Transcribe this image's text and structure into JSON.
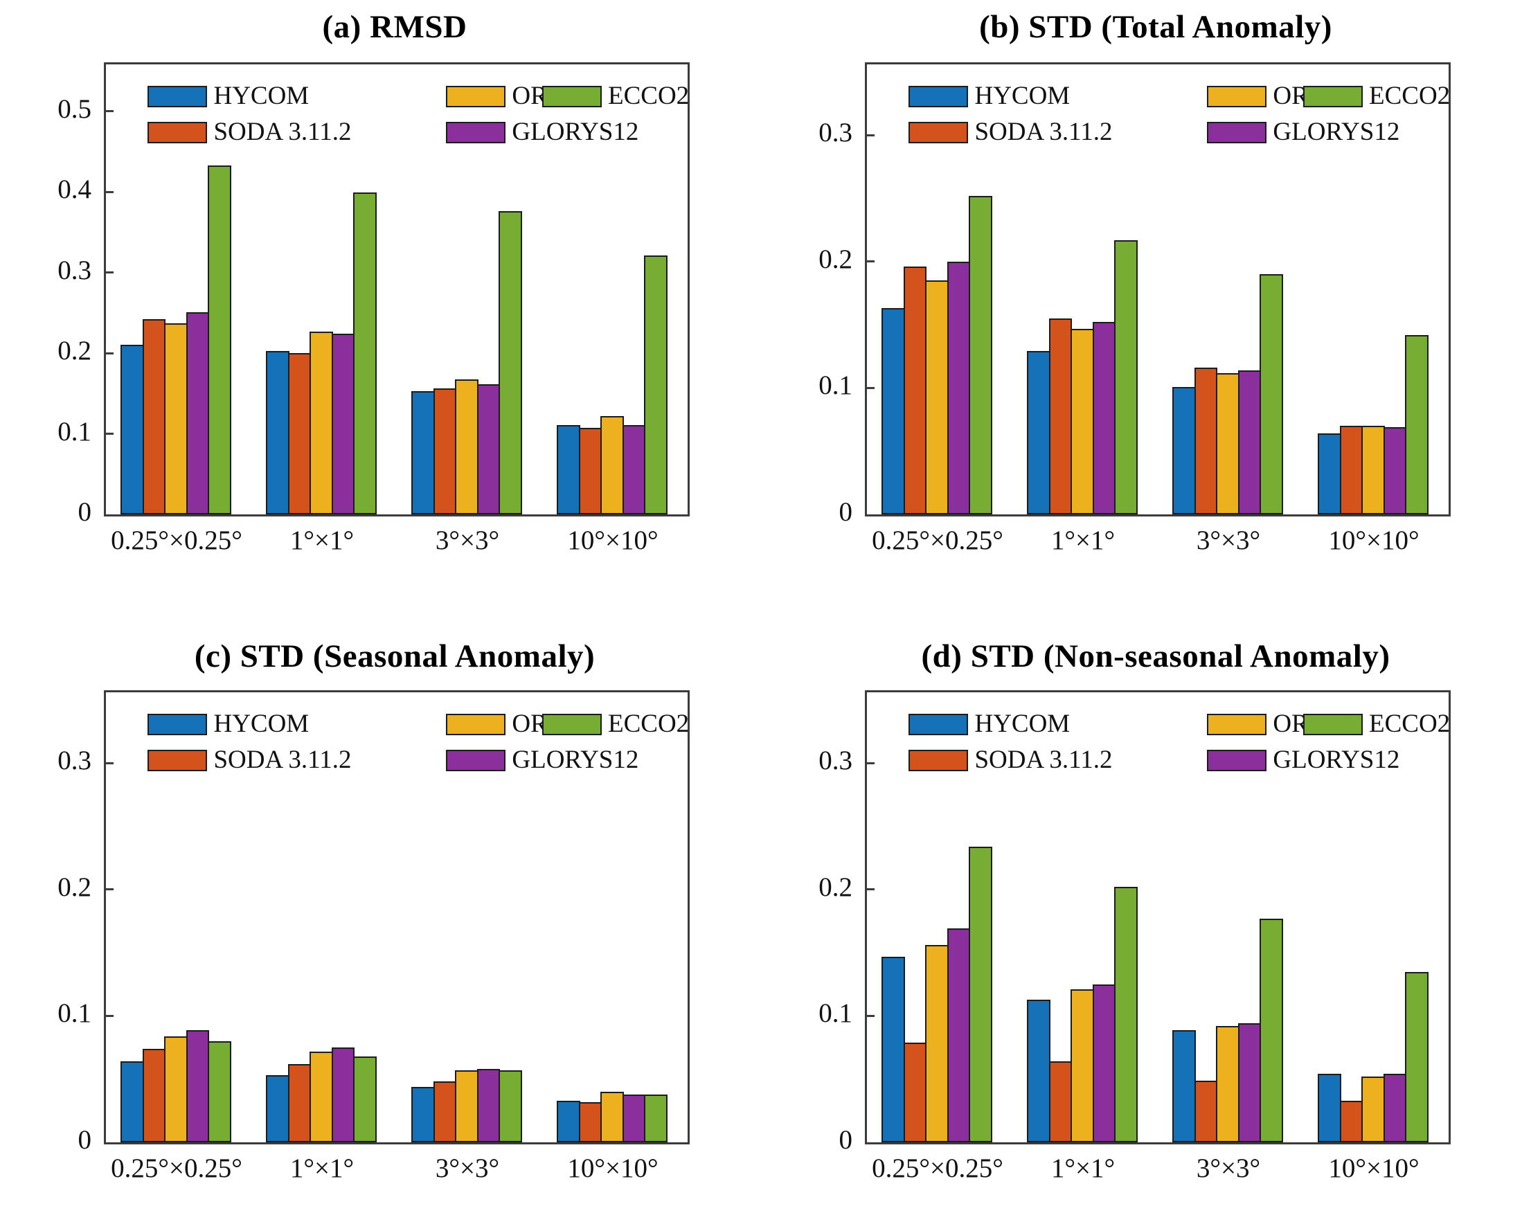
{
  "figure": {
    "background": "#ffffff",
    "axis_color": "#3c3c3c",
    "bar_outline_color": "#1c1c1c",
    "series_colors": {
      "HYCOM": "#1572b8",
      "SODA 3.11.2": "#d4531c",
      "ORAS5": "#edb11f",
      "GLORYS12": "#8a2f9c",
      "ECCO2": "#76ad32"
    }
  },
  "chart_data": [
    {
      "type": "bar",
      "title": "(a) RMSD",
      "categories": [
        "0.25°×0.25°",
        "1°×1°",
        "3°×3°",
        "10°×10°"
      ],
      "series": [
        {
          "name": "HYCOM",
          "color": "#1572b8",
          "values": [
            0.21,
            0.203,
            0.153,
            0.111
          ]
        },
        {
          "name": "SODA 3.11.2",
          "color": "#d4531c",
          "values": [
            0.242,
            0.2,
            0.156,
            0.107
          ]
        },
        {
          "name": "ORAS5",
          "color": "#edb11f",
          "values": [
            0.237,
            0.227,
            0.167,
            0.122
          ]
        },
        {
          "name": "GLORYS12",
          "color": "#8a2f9c",
          "values": [
            0.251,
            0.224,
            0.161,
            0.111
          ]
        },
        {
          "name": "ECCO2",
          "color": "#76ad32",
          "values": [
            0.433,
            0.399,
            0.376,
            0.321
          ]
        }
      ],
      "ylim": [
        0,
        0.558
      ],
      "yticks": [
        0,
        0.1,
        0.2,
        0.3,
        0.4,
        0.5
      ],
      "ytick_labels": [
        "0",
        "0.1",
        "0.2",
        "0.3",
        "0.4",
        "0.5"
      ],
      "grid": false,
      "legend_position": "inside-top-left"
    },
    {
      "type": "bar",
      "title": "(b) STD (Total Anomaly)",
      "categories": [
        "0.25°×0.25°",
        "1°×1°",
        "3°×3°",
        "10°×10°"
      ],
      "series": [
        {
          "name": "HYCOM",
          "color": "#1572b8",
          "values": [
            0.163,
            0.129,
            0.101,
            0.064
          ]
        },
        {
          "name": "SODA 3.11.2",
          "color": "#d4531c",
          "values": [
            0.196,
            0.155,
            0.116,
            0.07
          ]
        },
        {
          "name": "ORAS5",
          "color": "#edb11f",
          "values": [
            0.185,
            0.147,
            0.112,
            0.07
          ]
        },
        {
          "name": "GLORYS12",
          "color": "#8a2f9c",
          "values": [
            0.2,
            0.152,
            0.114,
            0.069
          ]
        },
        {
          "name": "ECCO2",
          "color": "#76ad32",
          "values": [
            0.252,
            0.217,
            0.19,
            0.142
          ]
        }
      ],
      "ylim": [
        0,
        0.356
      ],
      "yticks": [
        0,
        0.1,
        0.2,
        0.3
      ],
      "ytick_labels": [
        "0",
        "0.1",
        "0.2",
        "0.3"
      ],
      "grid": false,
      "legend_position": "inside-top-left"
    },
    {
      "type": "bar",
      "title": "(c) STD (Seasonal Anomaly)",
      "categories": [
        "0.25°×0.25°",
        "1°×1°",
        "3°×3°",
        "10°×10°"
      ],
      "series": [
        {
          "name": "HYCOM",
          "color": "#1572b8",
          "values": [
            0.064,
            0.053,
            0.044,
            0.033
          ]
        },
        {
          "name": "SODA 3.11.2",
          "color": "#d4531c",
          "values": [
            0.074,
            0.062,
            0.048,
            0.032
          ]
        },
        {
          "name": "ORAS5",
          "color": "#edb11f",
          "values": [
            0.084,
            0.072,
            0.057,
            0.04
          ]
        },
        {
          "name": "GLORYS12",
          "color": "#8a2f9c",
          "values": [
            0.089,
            0.075,
            0.058,
            0.038
          ]
        },
        {
          "name": "ECCO2",
          "color": "#76ad32",
          "values": [
            0.08,
            0.068,
            0.057,
            0.038
          ]
        }
      ],
      "ylim": [
        0,
        0.356
      ],
      "yticks": [
        0,
        0.1,
        0.2,
        0.3
      ],
      "ytick_labels": [
        "0",
        "0.1",
        "0.2",
        "0.3"
      ],
      "grid": false,
      "legend_position": "inside-top-left"
    },
    {
      "type": "bar",
      "title": "(d) STD (Non-seasonal Anomaly)",
      "categories": [
        "0.25°×0.25°",
        "1°×1°",
        "3°×3°",
        "10°×10°"
      ],
      "series": [
        {
          "name": "HYCOM",
          "color": "#1572b8",
          "values": [
            0.147,
            0.113,
            0.089,
            0.054
          ]
        },
        {
          "name": "SODA 3.11.2",
          "color": "#d4531c",
          "values": [
            0.079,
            0.064,
            0.049,
            0.033
          ]
        },
        {
          "name": "ORAS5",
          "color": "#edb11f",
          "values": [
            0.156,
            0.121,
            0.092,
            0.052
          ]
        },
        {
          "name": "GLORYS12",
          "color": "#8a2f9c",
          "values": [
            0.169,
            0.125,
            0.094,
            0.054
          ]
        },
        {
          "name": "ECCO2",
          "color": "#76ad32",
          "values": [
            0.234,
            0.202,
            0.177,
            0.135
          ]
        }
      ],
      "ylim": [
        0,
        0.356
      ],
      "yticks": [
        0,
        0.1,
        0.2,
        0.3
      ],
      "ytick_labels": [
        "0",
        "0.1",
        "0.2",
        "0.3"
      ],
      "grid": false,
      "legend_position": "inside-top-left"
    }
  ]
}
